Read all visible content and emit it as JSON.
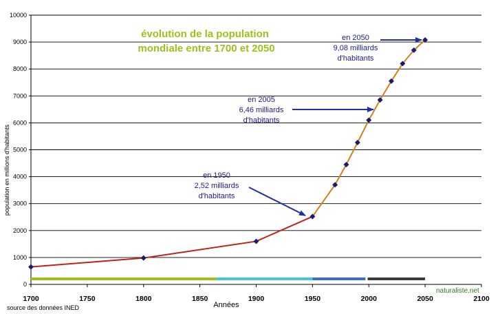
{
  "chart_data": {
    "type": "line",
    "title_lines": [
      "évolution de la population",
      "mondiale entre 1700 et 2050"
    ],
    "xlabel": "Années",
    "ylabel": "population en millions d'habitants",
    "xlim": [
      1700,
      2100
    ],
    "ylim": [
      0,
      10000
    ],
    "x_ticks": [
      1700,
      1750,
      1800,
      1850,
      1900,
      1950,
      2000,
      2050,
      2100
    ],
    "y_ticks": [
      0,
      1000,
      2000,
      3000,
      4000,
      5000,
      6000,
      7000,
      8000,
      9000,
      10000
    ],
    "grid": "horizontal",
    "series": [
      {
        "x": [
          1700,
          1800,
          1900,
          1950,
          1970,
          1980,
          1990,
          2000,
          2010,
          2020,
          2030,
          2040,
          2050
        ],
        "y": [
          650,
          980,
          1600,
          2520,
          3700,
          4450,
          5270,
          6100,
          6850,
          7550,
          8200,
          8700,
          9080
        ]
      }
    ],
    "line_colors": {
      "before_1950": "#c0201a",
      "after_1950": "#d4801a"
    },
    "marker_color": "#1a1a6e",
    "period_bars": [
      {
        "from": 1700,
        "to": 1865,
        "color": "#9ac21b"
      },
      {
        "from": 1865,
        "to": 1950,
        "color": "#40c8d8"
      },
      {
        "from": 1950,
        "to": 1997,
        "color": "#3a6bd6"
      },
      {
        "from": 1999,
        "to": 2050,
        "color": "#3a3a3a"
      }
    ],
    "annotations": [
      {
        "lines": [
          "en 1950",
          "2,52 milliards",
          "d'habitants"
        ],
        "point": [
          1950,
          2520
        ]
      },
      {
        "lines": [
          "en 2005",
          "6,46 milliards",
          "d'habitants"
        ],
        "point": [
          2003,
          6460
        ]
      },
      {
        "lines": [
          "en 2050",
          "9,08 milliards",
          "d'habitants"
        ],
        "point": [
          2050,
          9080
        ]
      }
    ],
    "source": "source des données INED",
    "watermark": "naturaliste.net"
  }
}
